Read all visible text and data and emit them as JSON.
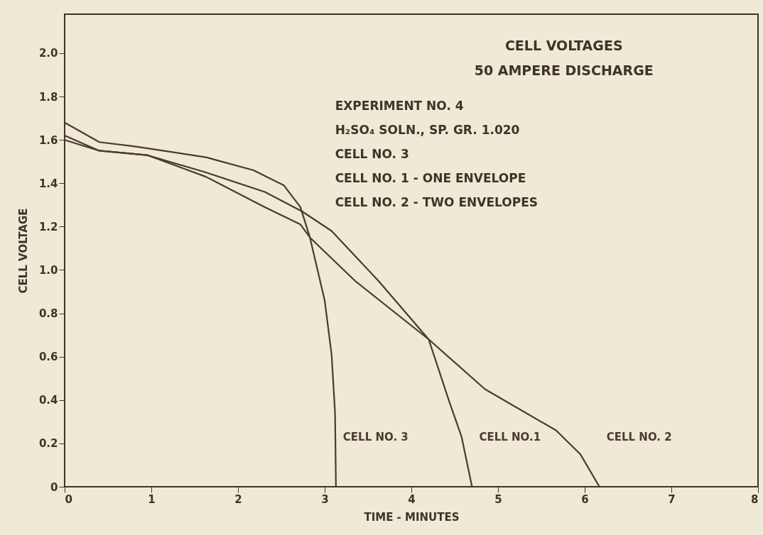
{
  "chart_data": {
    "type": "line",
    "title": "CELL VOLTAGES",
    "subtitle": "50 AMPERE DISCHARGE",
    "xlabel": "TIME - MINUTES",
    "ylabel": "CELL VOLTAGE",
    "annotations": [
      "EXPERIMENT NO. 4",
      "H₂SO₄ SOLN., SP. GR. 1.020",
      "CELL NO. 3",
      "CELL NO. 1 - ONE ENVELOPE",
      "CELL NO. 2 - TWO ENVELOPES"
    ],
    "series": [
      {
        "name": "CELL NO. 3",
        "color": "#4a3b30",
        "x": [
          0,
          0.4,
          0.81,
          1.63,
          2.18,
          2.53,
          2.72,
          2.83,
          3.0,
          3.08,
          3.12,
          3.13
        ],
        "values": [
          1.68,
          1.59,
          1.57,
          1.52,
          1.46,
          1.39,
          1.29,
          1.15,
          0.86,
          0.61,
          0.34,
          0
        ]
      },
      {
        "name": "CELL NO.1",
        "color": "#4a3b30",
        "x": [
          0,
          0.4,
          0.95,
          1.63,
          2.31,
          2.74,
          3.08,
          3.62,
          4.2,
          4.44,
          4.58,
          4.7
        ],
        "values": [
          1.62,
          1.55,
          1.53,
          1.45,
          1.36,
          1.27,
          1.18,
          0.95,
          0.68,
          0.39,
          0.23,
          0
        ]
      },
      {
        "name": "CELL NO. 2",
        "color": "#4a3b30",
        "x": [
          0,
          0.4,
          0.95,
          1.63,
          2.31,
          2.72,
          2.83,
          3.35,
          4.2,
          4.85,
          5.67,
          5.95,
          6.17
        ],
        "values": [
          1.6,
          1.55,
          1.53,
          1.43,
          1.29,
          1.21,
          1.15,
          0.95,
          0.68,
          0.45,
          0.26,
          0.15,
          0
        ]
      }
    ],
    "xlim": [
      0,
      8
    ],
    "ylim": [
      0,
      2.18
    ],
    "xticks": [
      0,
      1,
      2,
      3,
      4,
      5,
      6,
      7,
      8
    ],
    "yticks": [
      0,
      0.2,
      0.4,
      0.6,
      0.8,
      {
        "value": 1,
        "label": "1.0"
      },
      1.2,
      1.4,
      1.6,
      1.8,
      {
        "value": 2,
        "label": "2.0"
      }
    ],
    "grid": false,
    "line_style": "solid"
  }
}
